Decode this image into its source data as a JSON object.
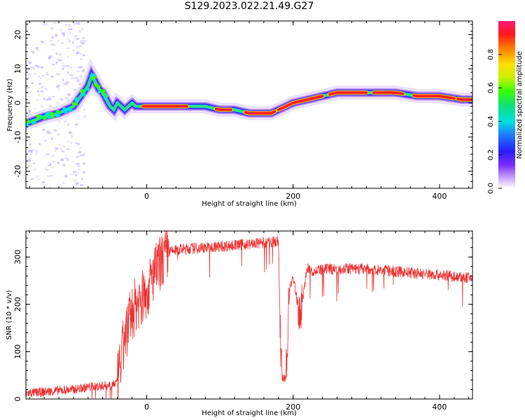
{
  "title": "S129.2023.022.21.49.G27",
  "chart_data": [
    {
      "type": "heatmap",
      "xlabel": "Height of straight line (km)",
      "ylabel": "Frequency (Hz)",
      "xlim": [
        -165,
        445
      ],
      "ylim": [
        -25,
        24
      ],
      "x_ticks": [
        0,
        200,
        400
      ],
      "y_ticks": [
        -20,
        -10,
        0,
        10,
        20
      ],
      "colorbar": {
        "label": "Normalized spectral amplitude",
        "range": [
          0,
          1
        ],
        "ticks": [
          0.0,
          0.2,
          0.4,
          0.6,
          0.8
        ]
      },
      "ridge": {
        "x": [
          -165,
          -140,
          -120,
          -100,
          -90,
          -80,
          -75,
          -70,
          -65,
          -60,
          -55,
          -50,
          -45,
          -40,
          -35,
          -30,
          -25,
          -20,
          -15,
          -10,
          0,
          20,
          50,
          80,
          100,
          120,
          140,
          160,
          170,
          180,
          190,
          200,
          220,
          240,
          260,
          300,
          340,
          370,
          400,
          430,
          445
        ],
        "y": [
          -6,
          -4,
          -3,
          -1,
          2,
          5,
          8,
          6,
          4,
          3,
          1,
          -1,
          -2,
          0,
          -1,
          -2,
          -1,
          0,
          -1,
          -1,
          -1,
          -1,
          -1,
          -1,
          -2,
          -2,
          -3,
          -3,
          -3,
          -2,
          -1,
          0,
          1,
          2,
          3,
          3,
          3,
          2,
          2,
          1,
          1
        ]
      }
    },
    {
      "type": "line",
      "xlabel": "Height of straight line (km)",
      "ylabel": "SNR (10 * v/v)",
      "xlim": [
        -165,
        445
      ],
      "ylim": [
        0,
        355
      ],
      "x_ticks": [
        0,
        200,
        400
      ],
      "y_ticks": [
        0,
        100,
        200,
        300
      ],
      "color": "#ee3333",
      "series": [
        {
          "x": [
            -165,
            -140,
            -120,
            -100,
            -80,
            -60,
            -50,
            -40,
            -35,
            -30,
            -25,
            -20,
            -15,
            -10,
            -5,
            0,
            5,
            10,
            20,
            30,
            40,
            60,
            80,
            100,
            120,
            140,
            160,
            175,
            180,
            183,
            185,
            190,
            195,
            200,
            205,
            210,
            215,
            220,
            230,
            250,
            300,
            350,
            400,
            445
          ],
          "y": [
            12,
            15,
            18,
            20,
            25,
            28,
            30,
            35,
            80,
            130,
            160,
            180,
            200,
            210,
            215,
            225,
            245,
            265,
            290,
            310,
            315,
            318,
            320,
            322,
            325,
            327,
            330,
            332,
            335,
            100,
            45,
            40,
            230,
            260,
            210,
            170,
            240,
            275,
            270,
            275,
            275,
            268,
            262,
            255
          ]
        }
      ]
    }
  ]
}
